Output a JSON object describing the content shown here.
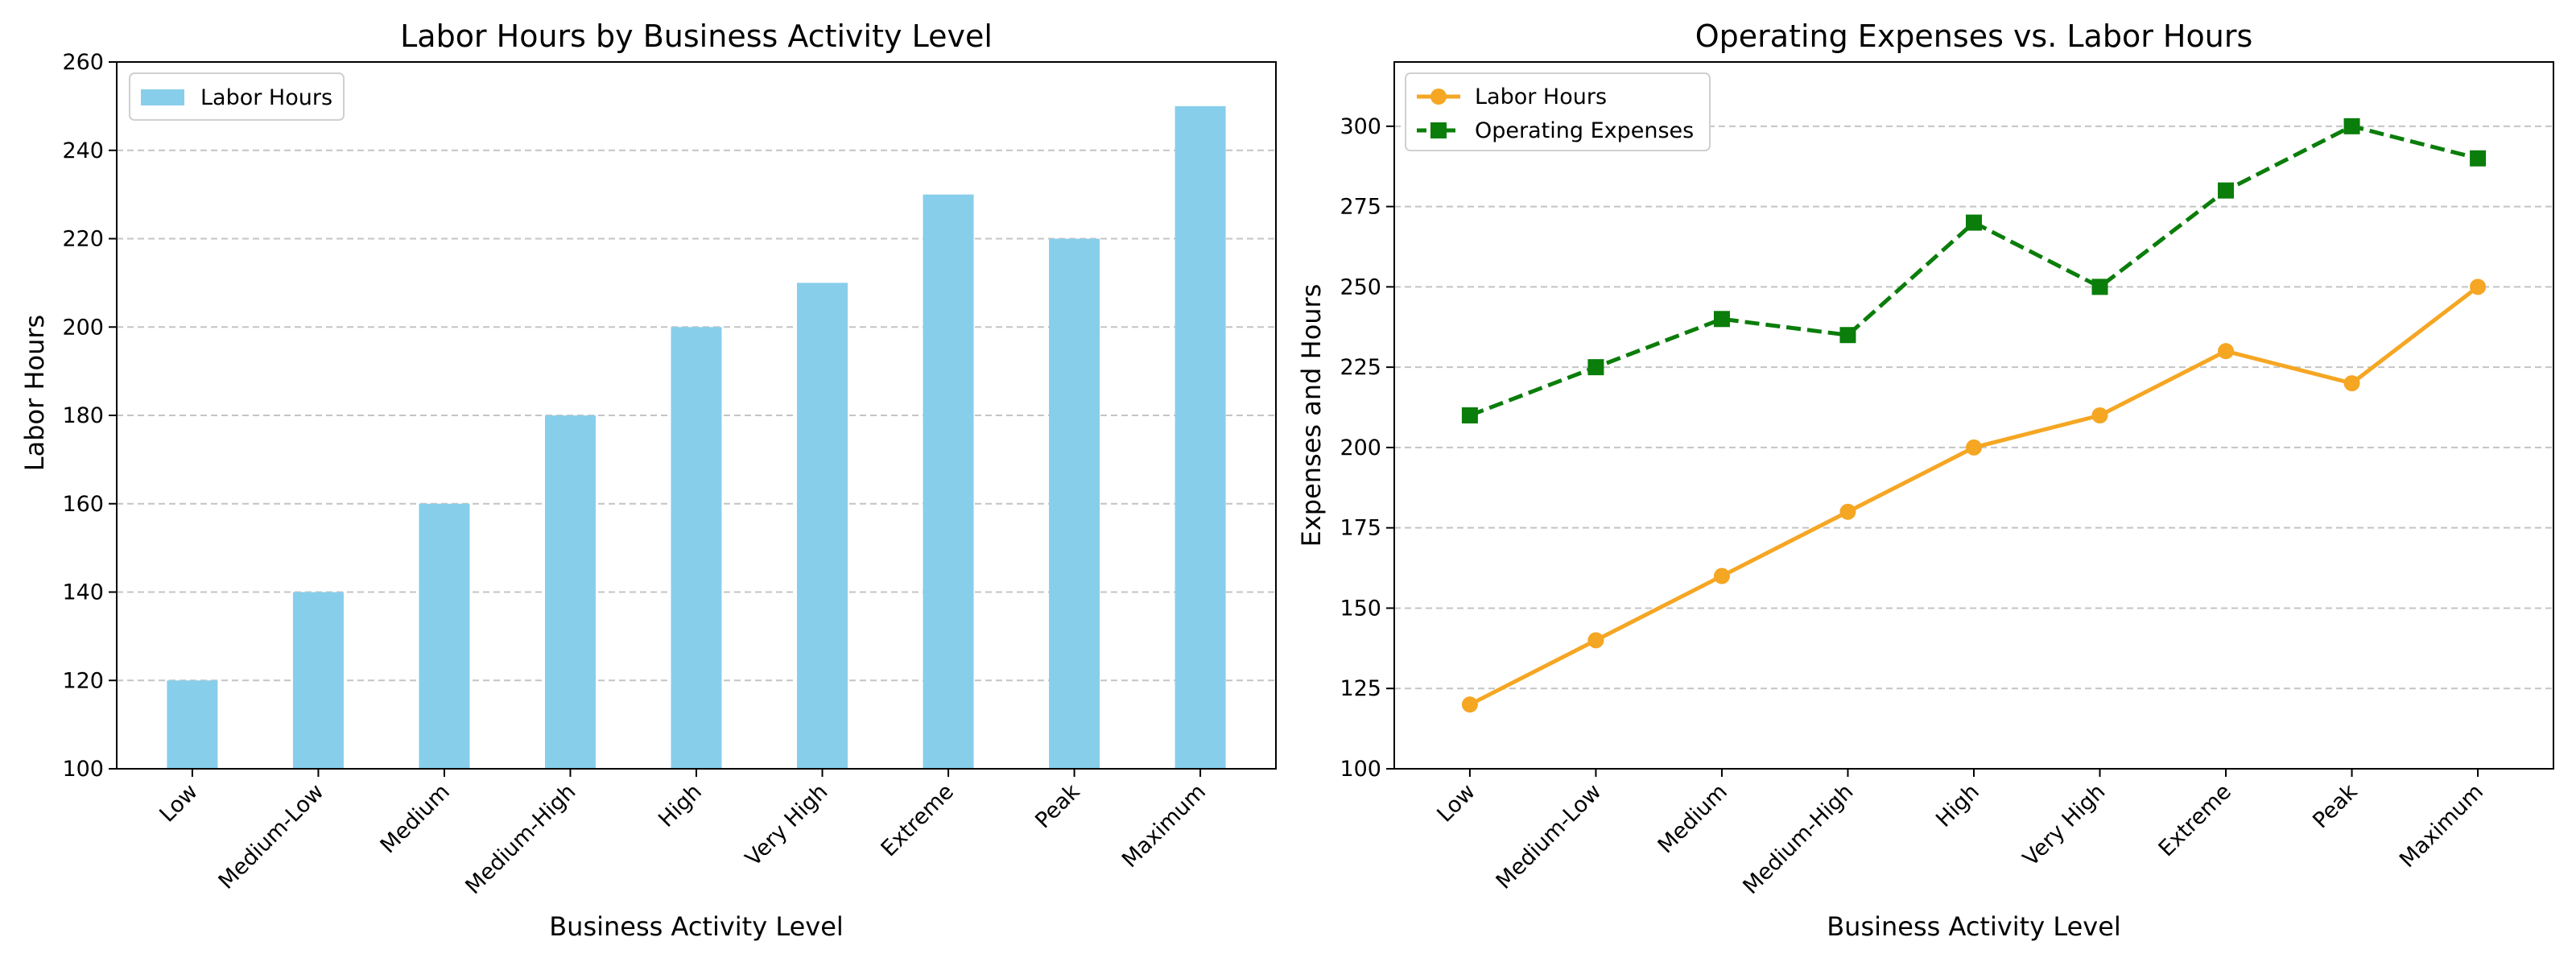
{
  "chart_data": [
    {
      "type": "bar",
      "title": "Labor Hours by Business Activity Level",
      "xlabel": "Business Activity Level",
      "ylabel": "Labor Hours",
      "categories": [
        "Low",
        "Medium-Low",
        "Medium",
        "Medium-High",
        "High",
        "Very High",
        "Extreme",
        "Peak",
        "Maximum"
      ],
      "series": [
        {
          "name": "Labor Hours",
          "values": [
            120,
            140,
            160,
            180,
            200,
            210,
            230,
            220,
            250
          ],
          "color": "#87ceeb"
        }
      ],
      "ylim": [
        100,
        260
      ],
      "yticks": [
        100,
        120,
        140,
        160,
        180,
        200,
        220,
        240,
        260
      ],
      "grid": "y-dashed",
      "legend": "top-left"
    },
    {
      "type": "line",
      "title": "Operating Expenses vs. Labor Hours",
      "xlabel": "Business Activity Level",
      "ylabel": "Expenses and Hours",
      "categories": [
        "Low",
        "Medium-Low",
        "Medium",
        "Medium-High",
        "High",
        "Very High",
        "Extreme",
        "Peak",
        "Maximum"
      ],
      "series": [
        {
          "name": "Labor Hours",
          "values": [
            120,
            140,
            160,
            180,
            200,
            210,
            230,
            220,
            250
          ],
          "color": "#f5a623",
          "marker": "circle",
          "linestyle": "solid"
        },
        {
          "name": "Operating Expenses",
          "values": [
            210,
            225,
            240,
            235,
            270,
            250,
            280,
            300,
            290
          ],
          "color": "#0a7d0a",
          "marker": "square",
          "linestyle": "dashed"
        }
      ],
      "ylim": [
        100,
        320
      ],
      "yticks": [
        100,
        125,
        150,
        175,
        200,
        225,
        250,
        275,
        300
      ],
      "grid": "y-dashed",
      "legend": "top-left"
    }
  ]
}
